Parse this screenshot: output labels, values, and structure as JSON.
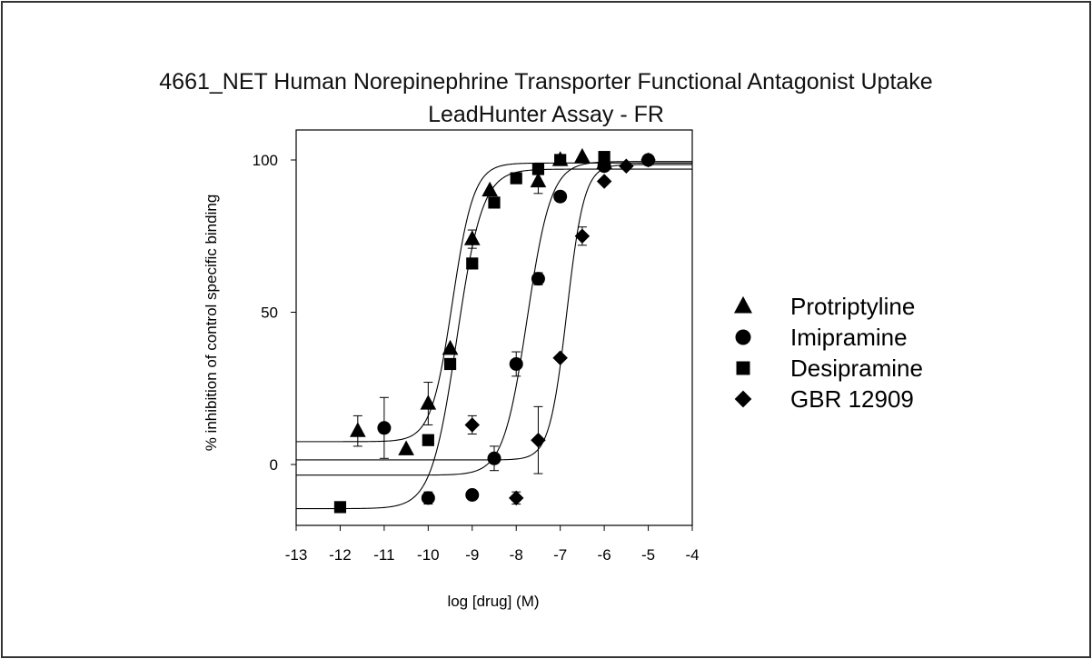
{
  "chart_data": {
    "type": "scatter",
    "title": "4661_NET Human Norepinephrine Transporter Functional Antagonist Uptake",
    "subtitle": "LeadHunter Assay - FR",
    "xlabel": "log [drug] (M)",
    "ylabel": "% inhibition of control specific binding",
    "xlim": [
      -13,
      -4
    ],
    "ylim": [
      -20,
      110
    ],
    "xticks": [
      "-13",
      "-12",
      "-11",
      "-10",
      "-9",
      "-8",
      "-7",
      "-6",
      "-5",
      "-4"
    ],
    "yticks": [
      "100",
      "50",
      "0"
    ],
    "legend_position": "right",
    "series": [
      {
        "name": "Protriptyline",
        "marker": "triangle",
        "points": [
          {
            "x": -11.6,
            "y": 11,
            "err": 5
          },
          {
            "x": -10.5,
            "y": 5,
            "err": 0
          },
          {
            "x": -10.0,
            "y": 20,
            "err": 7
          },
          {
            "x": -9.5,
            "y": 38,
            "err": 0
          },
          {
            "x": -9.0,
            "y": 74,
            "err": 3
          },
          {
            "x": -8.6,
            "y": 90,
            "err": 0
          },
          {
            "x": -7.5,
            "y": 93,
            "err": 4
          },
          {
            "x": -7.0,
            "y": 100,
            "err": 0
          },
          {
            "x": -6.5,
            "y": 101,
            "err": 0
          },
          {
            "x": -6.0,
            "y": 99,
            "err": 0
          }
        ],
        "fit": {
          "bottom": 7.5,
          "top": 99,
          "logec50": -9.45,
          "hill": 1.8
        }
      },
      {
        "name": "Imipramine",
        "marker": "circle",
        "points": [
          {
            "x": -11.0,
            "y": 12,
            "err": 10
          },
          {
            "x": -10.0,
            "y": -11,
            "err": 2
          },
          {
            "x": -9.0,
            "y": -10,
            "err": 0
          },
          {
            "x": -8.5,
            "y": 2,
            "err": 4
          },
          {
            "x": -8.0,
            "y": 33,
            "err": 4
          },
          {
            "x": -7.5,
            "y": 61,
            "err": 2
          },
          {
            "x": -7.0,
            "y": 88,
            "err": 0
          },
          {
            "x": -6.0,
            "y": 98,
            "err": 0
          },
          {
            "x": -5.0,
            "y": 100,
            "err": 0
          }
        ],
        "fit": {
          "bottom": -3.5,
          "top": 99.5,
          "logec50": -7.75,
          "hill": 1.6
        }
      },
      {
        "name": "Desipramine",
        "marker": "square",
        "points": [
          {
            "x": -12.0,
            "y": -14,
            "err": 0
          },
          {
            "x": -10.0,
            "y": 8,
            "err": 0
          },
          {
            "x": -9.5,
            "y": 33,
            "err": 0
          },
          {
            "x": -9.0,
            "y": 66,
            "err": 0
          },
          {
            "x": -8.5,
            "y": 86,
            "err": 0
          },
          {
            "x": -8.0,
            "y": 94,
            "err": 0
          },
          {
            "x": -7.5,
            "y": 97,
            "err": 0
          },
          {
            "x": -7.0,
            "y": 100,
            "err": 0
          },
          {
            "x": -6.0,
            "y": 101,
            "err": 0
          }
        ],
        "fit": {
          "bottom": -14.5,
          "top": 97,
          "logec50": -9.35,
          "hill": 1.5
        }
      },
      {
        "name": "GBR 12909",
        "marker": "diamond",
        "points": [
          {
            "x": -9.0,
            "y": 13,
            "err": 3
          },
          {
            "x": -8.0,
            "y": -11,
            "err": 2
          },
          {
            "x": -7.5,
            "y": 8,
            "err": 11
          },
          {
            "x": -7.0,
            "y": 35,
            "err": 0
          },
          {
            "x": -6.5,
            "y": 75,
            "err": 3
          },
          {
            "x": -6.0,
            "y": 93,
            "err": 0
          },
          {
            "x": -5.5,
            "y": 98,
            "err": 0
          },
          {
            "x": -5.0,
            "y": 100,
            "err": 0
          }
        ],
        "fit": {
          "bottom": 1.5,
          "top": 98.5,
          "logec50": -6.85,
          "hill": 2.2
        }
      }
    ]
  }
}
